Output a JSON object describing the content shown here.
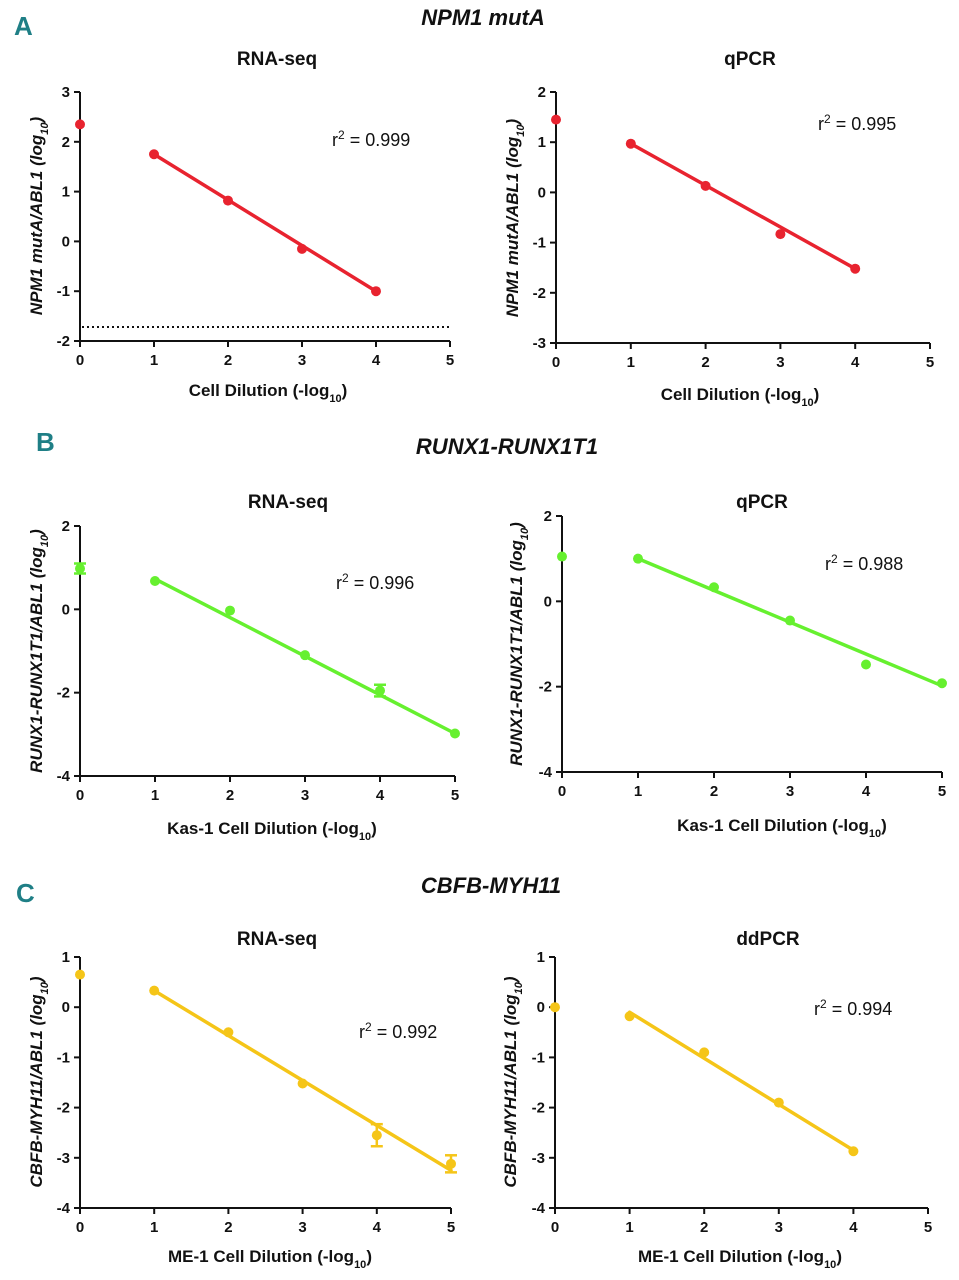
{
  "sections": [
    {
      "letter": "A",
      "title": "NPM1 mutA"
    },
    {
      "letter": "B",
      "title": "RUNX1-RUNX1T1"
    },
    {
      "letter": "C",
      "title": "CBFB-MYH11"
    }
  ],
  "chart_data": [
    {
      "type": "scatter",
      "title": "RNA-seq",
      "section": "A",
      "xlabel": "Cell Dilution (-log10)",
      "ylabel": "NPM1 mutA/ABL1 (log10)",
      "xlim": [
        0,
        5
      ],
      "ylim": [
        -2,
        3
      ],
      "xticks": [
        0,
        1,
        2,
        3,
        4,
        5
      ],
      "yticks": [
        -2,
        -1,
        0,
        1,
        2,
        3
      ],
      "color": "#e8232f",
      "r2": "r2 = 0.999",
      "x": [
        0,
        1,
        2,
        3,
        4
      ],
      "y": [
        2.35,
        1.75,
        0.82,
        -0.15,
        -1.0
      ],
      "errors": [
        0,
        0,
        0,
        0,
        0
      ],
      "fit": {
        "x0": 1,
        "y0": 1.75,
        "x1": 4,
        "y1": -1.0
      },
      "dotted_line_y": -1.72
    },
    {
      "type": "scatter",
      "title": "qPCR",
      "section": "A",
      "xlabel": "Cell Dilution (-log10)",
      "ylabel": "NPM1 mutA/ABL1 (log10)",
      "xlim": [
        0,
        5
      ],
      "ylim": [
        -3,
        2
      ],
      "xticks": [
        0,
        1,
        2,
        3,
        4,
        5
      ],
      "yticks": [
        -3,
        -2,
        -1,
        0,
        1,
        2
      ],
      "color": "#e8232f",
      "r2": "r2 = 0.995",
      "x": [
        0,
        1,
        2,
        3,
        4
      ],
      "y": [
        1.45,
        0.97,
        0.13,
        -0.83,
        -1.52
      ],
      "errors": [
        0,
        0,
        0,
        0,
        0
      ],
      "fit": {
        "x0": 1,
        "y0": 0.97,
        "x1": 4,
        "y1": -1.52
      }
    },
    {
      "type": "scatter",
      "title": "RNA-seq",
      "section": "B",
      "xlabel": "Kas-1 Cell Dilution (-log10)",
      "ylabel": "RUNX1-RUNX1T1/ABL1 (log10)",
      "xlim": [
        0,
        5
      ],
      "ylim": [
        -4,
        2
      ],
      "xticks": [
        0,
        1,
        2,
        3,
        4,
        5
      ],
      "yticks": [
        -4,
        -2,
        0,
        2
      ],
      "color": "#66f02f",
      "r2": "r2 = 0.996",
      "x": [
        0,
        1,
        2,
        3,
        4,
        5
      ],
      "y": [
        0.98,
        0.68,
        -0.03,
        -1.1,
        -1.95,
        -2.98
      ],
      "errors": [
        0.12,
        0,
        0,
        0,
        0.14,
        0
      ],
      "fit": {
        "x0": 1,
        "y0": 0.73,
        "x1": 5,
        "y1": -2.98
      }
    },
    {
      "type": "scatter",
      "title": "qPCR",
      "section": "B",
      "xlabel": "Kas-1 Cell Dilution (-log10)",
      "ylabel": "RUNX1-RUNX1T1/ABL1 (log10)",
      "xlim": [
        0,
        5
      ],
      "ylim": [
        -4,
        2
      ],
      "xticks": [
        0,
        1,
        2,
        3,
        4,
        5
      ],
      "yticks": [
        -4,
        -2,
        0,
        2
      ],
      "color": "#66f02f",
      "r2": "r2 = 0.988",
      "x": [
        0,
        1,
        2,
        3,
        4,
        5
      ],
      "y": [
        1.05,
        1.0,
        0.33,
        -0.45,
        -1.48,
        -1.92
      ],
      "errors": [
        0,
        0,
        0,
        0,
        0,
        0
      ],
      "fit": {
        "x0": 1,
        "y0": 1.0,
        "x1": 5,
        "y1": -1.98
      }
    },
    {
      "type": "scatter",
      "title": "RNA-seq",
      "section": "C",
      "xlabel": "ME-1 Cell Dilution (-log10)",
      "ylabel": "CBFB-MYH11/ABL1 (log10)",
      "xlim": [
        0,
        5
      ],
      "ylim": [
        -4,
        1
      ],
      "xticks": [
        0,
        1,
        2,
        3,
        4,
        5
      ],
      "yticks": [
        -4,
        -3,
        -2,
        -1,
        0,
        1
      ],
      "color": "#f5c518",
      "r2": "r2 = 0.992",
      "x": [
        0,
        1,
        2,
        3,
        4,
        5
      ],
      "y": [
        0.65,
        0.33,
        -0.5,
        -1.52,
        -2.55,
        -3.12
      ],
      "errors": [
        0,
        0,
        0,
        0,
        0.22,
        0.17
      ],
      "fit": {
        "x0": 1,
        "y0": 0.33,
        "x1": 5,
        "y1": -3.25
      }
    },
    {
      "type": "scatter",
      "title": "ddPCR",
      "section": "C",
      "xlabel": "ME-1 Cell Dilution (-log10)",
      "ylabel": "CBFB-MYH11/ABL1 (log10)",
      "xlim": [
        0,
        5
      ],
      "ylim": [
        -4,
        1
      ],
      "xticks": [
        0,
        1,
        2,
        3,
        4,
        5
      ],
      "yticks": [
        -4,
        -3,
        -2,
        -1,
        0,
        1
      ],
      "color": "#f5c518",
      "r2": "r2 = 0.994",
      "x": [
        0,
        1,
        2,
        3,
        4
      ],
      "y": [
        0.0,
        -0.18,
        -0.9,
        -1.9,
        -2.87
      ],
      "errors": [
        0,
        0,
        0,
        0,
        0
      ],
      "fit": {
        "x0": 1,
        "y0": -0.1,
        "x1": 4,
        "y1": -2.85
      }
    }
  ]
}
